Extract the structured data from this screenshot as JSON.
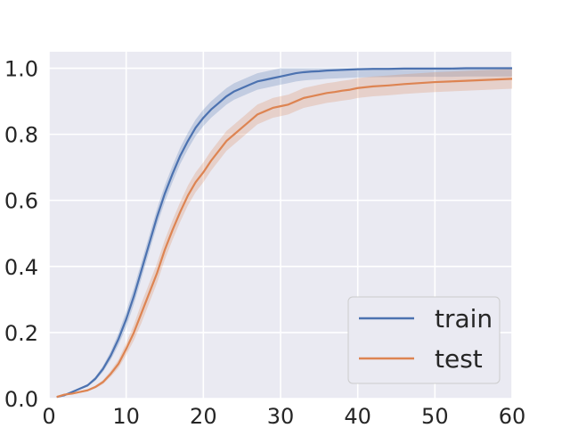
{
  "chart_data": {
    "type": "line",
    "title": "",
    "xlabel": "",
    "ylabel": "",
    "xlim": [
      0,
      60
    ],
    "ylim": [
      0,
      1.05
    ],
    "xticks": [
      0,
      10,
      20,
      30,
      40,
      50,
      60
    ],
    "yticks": [
      0.0,
      0.2,
      0.4,
      0.6,
      0.8,
      1.0
    ],
    "xtick_labels": [
      "0",
      "10",
      "20",
      "30",
      "40",
      "50",
      "60"
    ],
    "ytick_labels": [
      "0.0",
      "0.2",
      "0.4",
      "0.6",
      "0.8",
      "1.0"
    ],
    "grid": true,
    "legend": "lower right",
    "series": [
      {
        "name": "train",
        "color": "#4c72b0",
        "x": [
          1,
          2,
          3,
          4,
          5,
          6,
          7,
          8,
          9,
          10,
          11,
          12,
          13,
          14,
          15,
          16,
          17,
          18,
          19,
          20,
          21,
          22,
          23,
          24,
          25,
          26,
          27,
          28,
          29,
          30,
          31,
          32,
          33,
          34,
          35,
          36,
          37,
          38,
          39,
          40,
          42,
          44,
          46,
          48,
          50,
          52,
          54,
          56,
          58,
          60
        ],
        "y": [
          0.005,
          0.01,
          0.02,
          0.03,
          0.04,
          0.06,
          0.09,
          0.13,
          0.18,
          0.24,
          0.31,
          0.39,
          0.47,
          0.55,
          0.62,
          0.68,
          0.735,
          0.78,
          0.82,
          0.85,
          0.875,
          0.895,
          0.915,
          0.93,
          0.94,
          0.95,
          0.96,
          0.965,
          0.97,
          0.975,
          0.98,
          0.985,
          0.988,
          0.99,
          0.991,
          0.993,
          0.994,
          0.995,
          0.996,
          0.997,
          0.998,
          0.998,
          0.999,
          0.999,
          0.999,
          0.999,
          1.0,
          1.0,
          1.0,
          1.0
        ],
        "band": 0.025
      },
      {
        "name": "test",
        "color": "#dd8452",
        "x": [
          1,
          2,
          3,
          4,
          5,
          6,
          7,
          8,
          9,
          10,
          11,
          12,
          13,
          14,
          15,
          16,
          17,
          18,
          19,
          20,
          21,
          22,
          23,
          24,
          25,
          26,
          27,
          28,
          29,
          30,
          31,
          32,
          33,
          34,
          35,
          36,
          37,
          38,
          39,
          40,
          42,
          44,
          46,
          48,
          50,
          52,
          54,
          56,
          58,
          60
        ],
        "y": [
          0.005,
          0.012,
          0.015,
          0.02,
          0.025,
          0.035,
          0.05,
          0.075,
          0.105,
          0.15,
          0.2,
          0.26,
          0.32,
          0.38,
          0.45,
          0.51,
          0.565,
          0.615,
          0.655,
          0.685,
          0.72,
          0.75,
          0.78,
          0.8,
          0.82,
          0.84,
          0.86,
          0.87,
          0.88,
          0.885,
          0.89,
          0.9,
          0.91,
          0.915,
          0.92,
          0.925,
          0.928,
          0.932,
          0.935,
          0.94,
          0.945,
          0.948,
          0.952,
          0.955,
          0.958,
          0.96,
          0.962,
          0.964,
          0.966,
          0.968
        ],
        "band": 0.03
      }
    ]
  }
}
